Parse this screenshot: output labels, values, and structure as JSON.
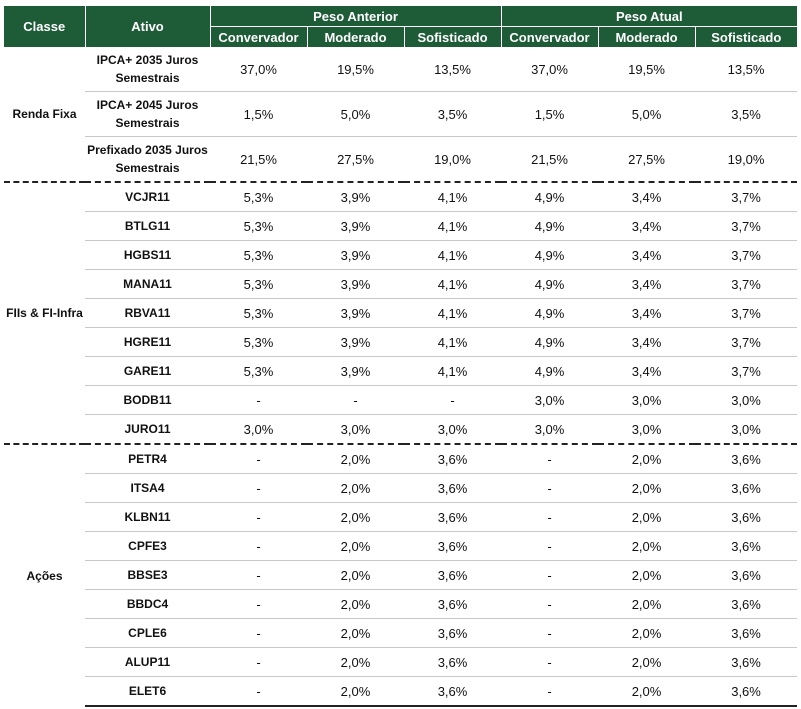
{
  "headers": {
    "classe": "Classe",
    "ativo": "Ativo",
    "peso_anterior": "Peso Anterior",
    "peso_atual": "Peso Atual",
    "profiles": [
      "Convervador",
      "Moderado",
      "Sofisticado",
      "Convervador",
      "Moderado",
      "Sofisticado"
    ]
  },
  "groups": [
    {
      "classe": "Renda Fixa",
      "rows": [
        {
          "ativo": "IPCA+ 2035 Juros Semestrais",
          "values": [
            "37,0%",
            "19,5%",
            "13,5%",
            "37,0%",
            "19,5%",
            "13,5%"
          ]
        },
        {
          "ativo": "IPCA+ 2045 Juros Semestrais",
          "values": [
            "1,5%",
            "5,0%",
            "3,5%",
            "1,5%",
            "5,0%",
            "3,5%"
          ]
        },
        {
          "ativo": "Prefixado 2035 Juros Semestrais",
          "values": [
            "21,5%",
            "27,5%",
            "19,0%",
            "21,5%",
            "27,5%",
            "19,0%"
          ]
        }
      ]
    },
    {
      "classe": "FIIs & FI-Infra",
      "rows": [
        {
          "ativo": "VCJR11",
          "values": [
            "5,3%",
            "3,9%",
            "4,1%",
            "4,9%",
            "3,4%",
            "3,7%"
          ]
        },
        {
          "ativo": "BTLG11",
          "values": [
            "5,3%",
            "3,9%",
            "4,1%",
            "4,9%",
            "3,4%",
            "3,7%"
          ]
        },
        {
          "ativo": "HGBS11",
          "values": [
            "5,3%",
            "3,9%",
            "4,1%",
            "4,9%",
            "3,4%",
            "3,7%"
          ]
        },
        {
          "ativo": "MANA11",
          "values": [
            "5,3%",
            "3,9%",
            "4,1%",
            "4,9%",
            "3,4%",
            "3,7%"
          ]
        },
        {
          "ativo": "RBVA11",
          "values": [
            "5,3%",
            "3,9%",
            "4,1%",
            "4,9%",
            "3,4%",
            "3,7%"
          ]
        },
        {
          "ativo": "HGRE11",
          "values": [
            "5,3%",
            "3,9%",
            "4,1%",
            "4,9%",
            "3,4%",
            "3,7%"
          ]
        },
        {
          "ativo": "GARE11",
          "values": [
            "5,3%",
            "3,9%",
            "4,1%",
            "4,9%",
            "3,4%",
            "3,7%"
          ]
        },
        {
          "ativo": "BODB11",
          "values": [
            "-",
            "-",
            "-",
            "3,0%",
            "3,0%",
            "3,0%"
          ]
        },
        {
          "ativo": "JURO11",
          "values": [
            "3,0%",
            "3,0%",
            "3,0%",
            "3,0%",
            "3,0%",
            "3,0%"
          ]
        }
      ]
    },
    {
      "classe": "Ações",
      "rows": [
        {
          "ativo": "PETR4",
          "values": [
            "-",
            "2,0%",
            "3,6%",
            "-",
            "2,0%",
            "3,6%"
          ]
        },
        {
          "ativo": "ITSA4",
          "values": [
            "-",
            "2,0%",
            "3,6%",
            "-",
            "2,0%",
            "3,6%"
          ]
        },
        {
          "ativo": "KLBN11",
          "values": [
            "-",
            "2,0%",
            "3,6%",
            "-",
            "2,0%",
            "3,6%"
          ]
        },
        {
          "ativo": "CPFE3",
          "values": [
            "-",
            "2,0%",
            "3,6%",
            "-",
            "2,0%",
            "3,6%"
          ]
        },
        {
          "ativo": "BBSE3",
          "values": [
            "-",
            "2,0%",
            "3,6%",
            "-",
            "2,0%",
            "3,6%"
          ]
        },
        {
          "ativo": "BBDC4",
          "values": [
            "-",
            "2,0%",
            "3,6%",
            "-",
            "2,0%",
            "3,6%"
          ]
        },
        {
          "ativo": "CPLE6",
          "values": [
            "-",
            "2,0%",
            "3,6%",
            "-",
            "2,0%",
            "3,6%"
          ]
        },
        {
          "ativo": "ALUP11",
          "values": [
            "-",
            "2,0%",
            "3,6%",
            "-",
            "2,0%",
            "3,6%"
          ]
        },
        {
          "ativo": "ELET6",
          "values": [
            "-",
            "2,0%",
            "3,6%",
            "-",
            "2,0%",
            "3,6%"
          ]
        }
      ]
    }
  ],
  "colors": {
    "header_bg": "#1e5c38",
    "header_text": "#ffffff"
  }
}
